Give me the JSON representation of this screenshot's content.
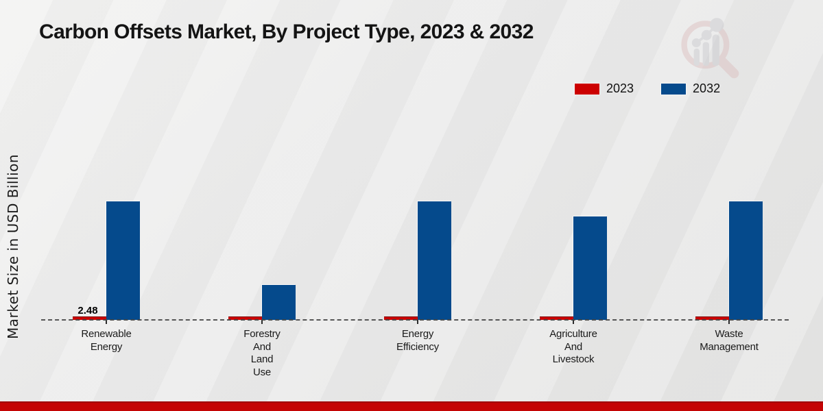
{
  "page": {
    "title": "Carbon Offsets Market, By Project Type, 2023 & 2032"
  },
  "legend": [
    {
      "label": "2023",
      "color": "#cc0000"
    },
    {
      "label": "2032",
      "color": "#054a8c"
    }
  ],
  "colors": {
    "bar_2023": "#cc0000",
    "bar_2032": "#054a8c",
    "footer_strip": "#c40404",
    "baseline": "#484848"
  },
  "chart_data": {
    "type": "bar",
    "title": "Carbon Offsets Market, By Project Type, 2023 & 2032",
    "xlabel": "",
    "ylabel": "Market Size in USD Billion",
    "categories": [
      "Renewable Energy",
      "Forestry And Land Use",
      "Energy Efficiency",
      "Agriculture And Livestock",
      "Waste Management"
    ],
    "category_label_lines": [
      [
        "Renewable",
        "Energy"
      ],
      [
        "Forestry",
        "And",
        "Land",
        "Use"
      ],
      [
        "Energy",
        "Efficiency"
      ],
      [
        "Agriculture",
        "And",
        "Livestock"
      ],
      [
        "Waste",
        "Management"
      ]
    ],
    "series": [
      {
        "name": "2023",
        "color": "#cc0000",
        "values": [
          2.48,
          2.4,
          2.5,
          2.4,
          2.4
        ]
      },
      {
        "name": "2032",
        "color": "#054a8c",
        "values": [
          106.6,
          31.6,
          106.9,
          93.6,
          106.6
        ]
      }
    ],
    "data_labels": [
      {
        "series": "2023",
        "category_index": 0,
        "text": "2.48"
      }
    ],
    "ylim": [
      0,
      110
    ],
    "grid": false,
    "baseline_style": "dashed",
    "legend_position": "top-right",
    "y_axis_ticks_visible": false
  }
}
